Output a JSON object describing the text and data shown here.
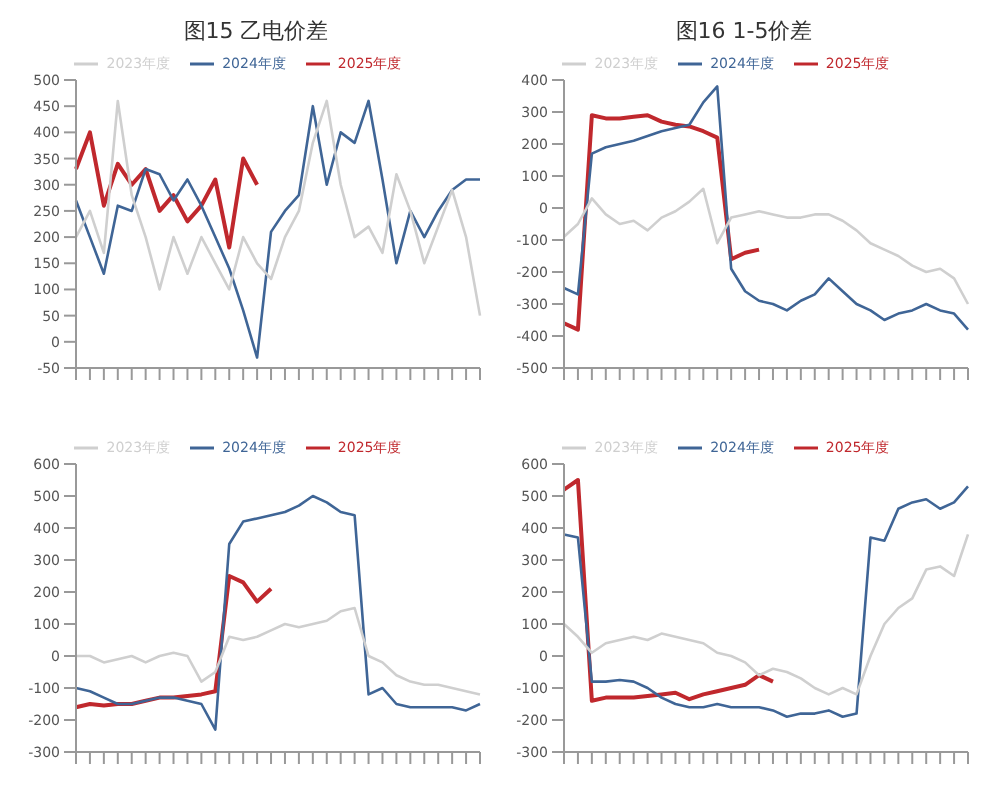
{
  "chart_data": [
    {
      "type": "line",
      "title": "图15 乙电价差",
      "categories": [
        null,
        null,
        null,
        null,
        null,
        null,
        null,
        null,
        null,
        null,
        null,
        null,
        null,
        null,
        null,
        null,
        null,
        null,
        null,
        null,
        null,
        null,
        null,
        null,
        null,
        null,
        null,
        null,
        null,
        null
      ],
      "ylim": [
        -50,
        500
      ],
      "yticks": [
        -50,
        0,
        50,
        100,
        150,
        200,
        250,
        300,
        350,
        400,
        450,
        500
      ],
      "legend": "top",
      "series": [
        {
          "name": "2025年度",
          "color": "#c0282d",
          "values": [
            330,
            400,
            260,
            340,
            300,
            330,
            250,
            280,
            230,
            260,
            310,
            180,
            350,
            300,
            null,
            null,
            null,
            null,
            null,
            null,
            null,
            null,
            null,
            null,
            null,
            null,
            null,
            null,
            null,
            null
          ]
        },
        {
          "name": "2024年度",
          "color": "#3f6596",
          "values": [
            270,
            200,
            130,
            260,
            250,
            330,
            320,
            270,
            310,
            260,
            200,
            140,
            60,
            -30,
            210,
            250,
            280,
            450,
            300,
            400,
            380,
            460,
            310,
            150,
            250,
            200,
            250,
            290,
            310,
            310
          ]
        },
        {
          "name": "2023年度",
          "color": "#cfcfcf",
          "values": [
            200,
            250,
            170,
            460,
            280,
            200,
            100,
            200,
            130,
            200,
            150,
            100,
            200,
            150,
            120,
            200,
            250,
            380,
            460,
            300,
            200,
            220,
            170,
            320,
            250,
            150,
            220,
            290,
            200,
            50
          ]
        }
      ]
    },
    {
      "type": "line",
      "title": "图16 1-5价差",
      "categories": [
        null,
        null,
        null,
        null,
        null,
        null,
        null,
        null,
        null,
        null,
        null,
        null,
        null,
        null,
        null,
        null,
        null,
        null,
        null,
        null,
        null,
        null,
        null,
        null,
        null,
        null,
        null,
        null,
        null,
        null
      ],
      "ylim": [
        -500,
        400
      ],
      "yticks": [
        -500,
        -400,
        -300,
        -200,
        -100,
        0,
        100,
        200,
        300,
        400
      ],
      "legend": "top",
      "series": [
        {
          "name": "2025年度",
          "color": "#c0282d",
          "values": [
            -360,
            -380,
            290,
            280,
            280,
            285,
            290,
            270,
            260,
            255,
            240,
            220,
            -160,
            -140,
            -130,
            null,
            null,
            null,
            null,
            null,
            null,
            null,
            null,
            null,
            null,
            null,
            null,
            null,
            null,
            null
          ]
        },
        {
          "name": "2024年度",
          "color": "#3f6596",
          "values": [
            -250,
            -270,
            170,
            190,
            200,
            210,
            225,
            240,
            250,
            260,
            330,
            380,
            -190,
            -260,
            -290,
            -300,
            -320,
            -290,
            -270,
            -220,
            -260,
            -300,
            -320,
            -350,
            -330,
            -320,
            -300,
            -320,
            -330,
            -380
          ]
        },
        {
          "name": "2023年度",
          "color": "#cfcfcf",
          "values": [
            -90,
            -50,
            30,
            -20,
            -50,
            -40,
            -70,
            -30,
            -10,
            20,
            60,
            -110,
            -30,
            -20,
            -10,
            -20,
            -30,
            -30,
            -20,
            -20,
            -40,
            -70,
            -110,
            -130,
            -150,
            -180,
            -200,
            -190,
            -220,
            -300
          ]
        }
      ]
    },
    {
      "type": "line",
      "categories": [
        null,
        null,
        null,
        null,
        null,
        null,
        null,
        null,
        null,
        null,
        null,
        null,
        null,
        null,
        null,
        null,
        null,
        null,
        null,
        null,
        null,
        null,
        null,
        null,
        null,
        null,
        null,
        null,
        null,
        null
      ],
      "ylim": [
        -300,
        600
      ],
      "yticks": [
        -300,
        -200,
        -100,
        0,
        100,
        200,
        300,
        400,
        500,
        600
      ],
      "legend": "top",
      "series": [
        {
          "name": "2025年度",
          "color": "#c0282d",
          "values": [
            -160,
            -150,
            -155,
            -150,
            -150,
            -140,
            -130,
            -130,
            -125,
            -120,
            -110,
            250,
            230,
            170,
            210,
            null,
            null,
            null,
            null,
            null,
            null,
            null,
            null,
            null,
            null,
            null,
            null,
            null,
            null,
            null
          ]
        },
        {
          "name": "2024年度",
          "color": "#3f6596",
          "values": [
            -100,
            -110,
            -130,
            -150,
            -150,
            -140,
            -130,
            -130,
            -140,
            -150,
            -230,
            350,
            420,
            430,
            440,
            450,
            470,
            500,
            480,
            450,
            440,
            -120,
            -100,
            -150,
            -160,
            -160,
            -160,
            -160,
            -170,
            -150
          ]
        },
        {
          "name": "2023年度",
          "color": "#cfcfcf",
          "values": [
            0,
            0,
            -20,
            -10,
            0,
            -20,
            0,
            10,
            0,
            -80,
            -50,
            60,
            50,
            60,
            80,
            100,
            90,
            100,
            110,
            140,
            150,
            0,
            -20,
            -60,
            -80,
            -90,
            -90,
            -100,
            -110,
            -120
          ]
        }
      ]
    },
    {
      "type": "line",
      "categories": [
        null,
        null,
        null,
        null,
        null,
        null,
        null,
        null,
        null,
        null,
        null,
        null,
        null,
        null,
        null,
        null,
        null,
        null,
        null,
        null,
        null,
        null,
        null,
        null,
        null,
        null,
        null,
        null,
        null,
        null
      ],
      "ylim": [
        -300,
        600
      ],
      "yticks": [
        -300,
        -200,
        -100,
        0,
        100,
        200,
        300,
        400,
        500,
        600
      ],
      "legend": "top",
      "series": [
        {
          "name": "2025年度",
          "color": "#c0282d",
          "values": [
            520,
            550,
            -140,
            -130,
            -130,
            -130,
            -125,
            -120,
            -115,
            -135,
            -120,
            -110,
            -100,
            -90,
            -60,
            -80,
            null,
            null,
            null,
            null,
            null,
            null,
            null,
            null,
            null,
            null,
            null,
            null,
            null,
            null
          ]
        },
        {
          "name": "2024年度",
          "color": "#3f6596",
          "values": [
            380,
            370,
            -80,
            -80,
            -75,
            -80,
            -100,
            -130,
            -150,
            -160,
            -160,
            -150,
            -160,
            -160,
            -160,
            -170,
            -190,
            -180,
            -180,
            -170,
            -190,
            -180,
            370,
            360,
            460,
            480,
            490,
            460,
            480,
            530
          ]
        },
        {
          "name": "2023年度",
          "color": "#cfcfcf",
          "values": [
            100,
            60,
            10,
            40,
            50,
            60,
            50,
            70,
            60,
            50,
            40,
            10,
            0,
            -20,
            -60,
            -40,
            -50,
            -70,
            -100,
            -120,
            -100,
            -120,
            0,
            100,
            150,
            180,
            270,
            280,
            250,
            380
          ]
        }
      ]
    }
  ]
}
